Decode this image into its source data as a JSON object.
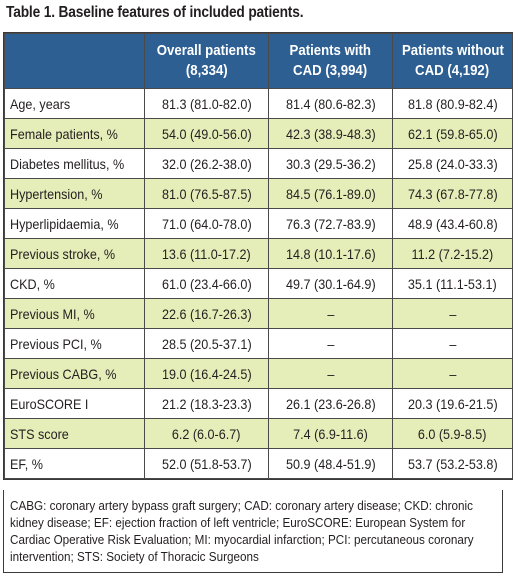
{
  "title": "Table 1. Baseline features of included patients.",
  "header": {
    "col0": "",
    "col1": [
      "Overall patients",
      "(8,334)"
    ],
    "col2": [
      "Patients with",
      "CAD (3,994)"
    ],
    "col3": [
      "Patients without",
      "CAD (4,192)"
    ]
  },
  "rows": [
    {
      "label": "Age, years",
      "overall": "81.3 (81.0-82.0)",
      "cad": "81.4 (80.6-82.3)",
      "no_cad": "81.8 (80.9-82.4)"
    },
    {
      "label": "Female patients, %",
      "overall": "54.0 (49.0-56.0)",
      "cad": "42.3 (38.9-48.3)",
      "no_cad": "62.1 (59.8-65.0)"
    },
    {
      "label": "Diabetes mellitus, %",
      "overall": "32.0 (26.2-38.0)",
      "cad": "30.3 (29.5-36.2)",
      "no_cad": "25.8 (24.0-33.3)"
    },
    {
      "label": "Hypertension, %",
      "overall": "81.0 (76.5-87.5)",
      "cad": "84.5 (76.1-89.0)",
      "no_cad": "74.3 (67.8-77.8)"
    },
    {
      "label": "Hyperlipidaemia, %",
      "overall": "71.0 (64.0-78.0)",
      "cad": "76.3 (72.7-83.9)",
      "no_cad": "48.9 (43.4-60.8)"
    },
    {
      "label": "Previous stroke, %",
      "overall": "13.6 (11.0-17.2)",
      "cad": "14.8 (10.1-17.6)",
      "no_cad": "11.2 (7.2-15.2)"
    },
    {
      "label": "CKD, %",
      "overall": "61.0 (23.4-66.0)",
      "cad": "49.7 (30.1-64.9)",
      "no_cad": "35.1 (11.1-53.1)"
    },
    {
      "label": "Previous MI, %",
      "overall": "22.6 (16.7-26.3)",
      "cad": "–",
      "no_cad": "–"
    },
    {
      "label": "Previous PCI, %",
      "overall": "28.5 (20.5-37.1)",
      "cad": "–",
      "no_cad": "–"
    },
    {
      "label": "Previous CABG, %",
      "overall": "19.0 (16.4-24.5)",
      "cad": "–",
      "no_cad": "–"
    },
    {
      "label": "EuroSCORE I",
      "overall": "21.2 (18.3-23.3)",
      "cad": "26.1 (23.6-26.8)",
      "no_cad": "20.3 (19.6-21.5)"
    },
    {
      "label": "STS score",
      "overall": "6.2 (6.0-6.7)",
      "cad": "7.4 (6.9-11.6)",
      "no_cad": "6.0 (5.9-8.5)"
    },
    {
      "label": "EF, %",
      "overall": "52.0 (51.8-53.7)",
      "cad": "50.9 (48.4-51.9)",
      "no_cad": "53.7 (53.2-53.8)"
    }
  ],
  "footnote": "CABG: coronary artery bypass graft surgery; CAD: coronary artery disease; CKD: chronic kidney disease; EF: ejection fraction of left ventricle; EuroSCORE: European System for Cardiac Operative Risk Evaluation; MI: myocardial infarction; PCI: percutaneous coronary intervention; STS: Society of Thoracic Surgeons",
  "colors": {
    "header_bg": "#2d5f93",
    "header_text": "#ffffff",
    "stripe": "#e5edb8"
  }
}
